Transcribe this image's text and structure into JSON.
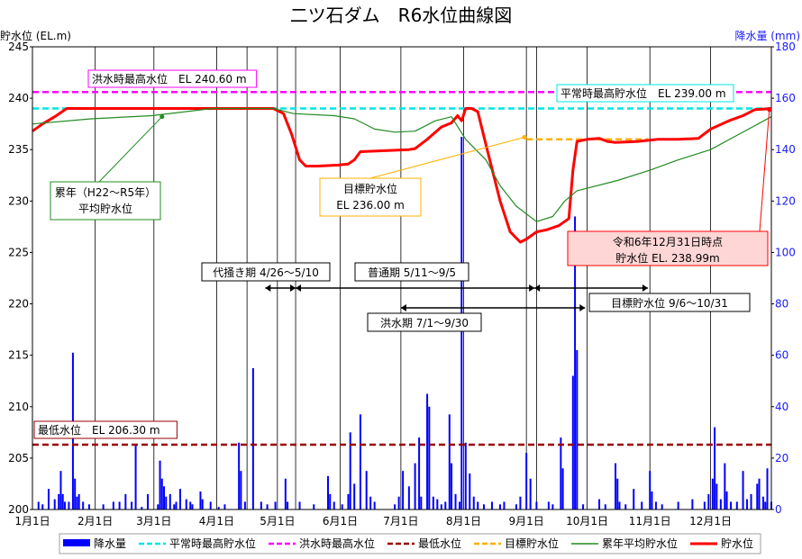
{
  "chart_data": {
    "type": "line",
    "title": "二ツ石ダム　R6水位曲線図",
    "ylabel_left": "貯水位 (EL.m)",
    "ylabel_right": "降水量 (mm)",
    "y_left_range": [
      200,
      245
    ],
    "y_left_ticks": [
      200,
      205,
      210,
      215,
      220,
      225,
      230,
      235,
      240,
      245
    ],
    "y_right_range": [
      0,
      180
    ],
    "y_right_ticks": [
      0,
      20,
      40,
      60,
      80,
      100,
      120,
      140,
      160,
      180
    ],
    "x_range_days": [
      1,
      366
    ],
    "x_ticks": [
      {
        "label": "1月1日",
        "day": 1
      },
      {
        "label": "2月1日",
        "day": 32
      },
      {
        "label": "3月1日",
        "day": 61
      },
      {
        "label": "4月1日",
        "day": 92
      },
      {
        "label": "5月1日",
        "day": 122
      },
      {
        "label": "6月1日",
        "day": 153
      },
      {
        "label": "7月1日",
        "day": 183
      },
      {
        "label": "8月1日",
        "day": 214
      },
      {
        "label": "9月1日",
        "day": 245
      },
      {
        "label": "10月1日",
        "day": 275
      },
      {
        "label": "11月1日",
        "day": 306
      },
      {
        "label": "12月1日",
        "day": 336
      }
    ],
    "grid_vertical": [
      32,
      61,
      92,
      107,
      122,
      131,
      153,
      183,
      214,
      245,
      250,
      275,
      306,
      336
    ],
    "reference_lines": [
      {
        "name": "平常時最高貯水位",
        "value": 239.0,
        "color": "#00e5e5",
        "label": "平常時最高貯水位　EL 239.00 m"
      },
      {
        "name": "洪水時最高水位",
        "value": 240.6,
        "color": "#ff00ff",
        "label": "洪水時最高水位　EL 240.60 m"
      },
      {
        "name": "最低水位",
        "value": 206.3,
        "color": "#990000",
        "label": "最低水位　EL 206.30 m"
      },
      {
        "name": "目標貯水位",
        "value": 236.0,
        "color": "#ffb000",
        "day_range": [
          245,
          305
        ]
      }
    ],
    "series": [
      {
        "name": "貯水位",
        "color": "#ff0000",
        "points": [
          [
            1,
            236.8
          ],
          [
            6,
            237.5
          ],
          [
            12,
            238.2
          ],
          [
            18,
            239.0
          ],
          [
            30,
            239.0
          ],
          [
            60,
            239.0
          ],
          [
            90,
            239.0
          ],
          [
            120,
            239.0
          ],
          [
            125,
            238.5
          ],
          [
            129,
            236.5
          ],
          [
            133,
            234.0
          ],
          [
            136,
            233.4
          ],
          [
            142,
            233.4
          ],
          [
            152,
            233.5
          ],
          [
            157,
            233.6
          ],
          [
            160,
            234.0
          ],
          [
            163,
            234.8
          ],
          [
            175,
            234.9
          ],
          [
            187,
            235.0
          ],
          [
            190,
            235.1
          ],
          [
            196,
            236.0
          ],
          [
            203,
            237.2
          ],
          [
            208,
            237.6
          ],
          [
            211,
            238.3
          ],
          [
            213,
            237.8
          ],
          [
            215,
            239.0
          ],
          [
            218,
            239.0
          ],
          [
            221,
            238.7
          ],
          [
            225,
            235.5
          ],
          [
            232,
            230.0
          ],
          [
            237,
            227.0
          ],
          [
            242,
            226.0
          ],
          [
            245,
            226.3
          ],
          [
            250,
            227.0
          ],
          [
            255,
            227.2
          ],
          [
            261,
            227.6
          ],
          [
            266,
            228.3
          ],
          [
            268,
            233.0
          ],
          [
            270,
            235.8
          ],
          [
            275,
            236.0
          ],
          [
            281,
            236.1
          ],
          [
            285,
            235.8
          ],
          [
            289,
            235.7
          ],
          [
            300,
            235.8
          ],
          [
            310,
            236.0
          ],
          [
            320,
            236.0
          ],
          [
            330,
            236.1
          ],
          [
            336,
            237.0
          ],
          [
            345,
            237.8
          ],
          [
            352,
            238.3
          ],
          [
            358,
            238.9
          ],
          [
            366,
            238.99
          ]
        ]
      },
      {
        "name": "累年平均貯水位",
        "color": "#228b22",
        "points": [
          [
            1,
            237.5
          ],
          [
            30,
            238.0
          ],
          [
            60,
            238.3
          ],
          [
            90,
            239.0
          ],
          [
            120,
            239.0
          ],
          [
            130,
            238.5
          ],
          [
            150,
            238.3
          ],
          [
            160,
            238.0
          ],
          [
            170,
            237.0
          ],
          [
            180,
            236.7
          ],
          [
            190,
            236.8
          ],
          [
            200,
            237.8
          ],
          [
            208,
            238.2
          ],
          [
            215,
            236.0
          ],
          [
            225,
            234.0
          ],
          [
            232,
            231.5
          ],
          [
            240,
            229.5
          ],
          [
            250,
            228.0
          ],
          [
            258,
            228.5
          ],
          [
            264,
            230.0
          ],
          [
            270,
            231.0
          ],
          [
            290,
            232.0
          ],
          [
            306,
            233.0
          ],
          [
            320,
            234.0
          ],
          [
            336,
            235.0
          ],
          [
            350,
            236.5
          ],
          [
            366,
            238.2
          ]
        ]
      },
      {
        "name": "降水量",
        "type": "bar",
        "color": "#0000ff",
        "bars": [
          [
            4,
            3
          ],
          [
            6,
            2
          ],
          [
            9,
            8
          ],
          [
            12,
            4
          ],
          [
            14,
            6
          ],
          [
            15,
            15
          ],
          [
            16,
            6
          ],
          [
            17,
            3
          ],
          [
            19,
            3
          ],
          [
            21,
            61
          ],
          [
            22,
            12
          ],
          [
            23,
            5
          ],
          [
            24,
            6
          ],
          [
            26,
            3
          ],
          [
            29,
            2
          ],
          [
            36,
            2
          ],
          [
            41,
            3
          ],
          [
            44,
            3
          ],
          [
            47,
            6
          ],
          [
            50,
            3
          ],
          [
            52,
            25
          ],
          [
            55,
            1
          ],
          [
            58,
            6
          ],
          [
            63,
            2
          ],
          [
            64,
            19
          ],
          [
            65,
            12
          ],
          [
            66,
            9
          ],
          [
            67,
            5
          ],
          [
            69,
            6
          ],
          [
            71,
            2
          ],
          [
            72,
            3
          ],
          [
            74,
            8
          ],
          [
            77,
            4
          ],
          [
            79,
            3
          ],
          [
            80,
            2
          ],
          [
            84,
            7
          ],
          [
            85,
            4
          ],
          [
            89,
            3
          ],
          [
            93,
            1
          ],
          [
            96,
            2
          ],
          [
            103,
            26
          ],
          [
            104,
            15
          ],
          [
            106,
            3
          ],
          [
            110,
            55
          ],
          [
            114,
            3
          ],
          [
            117,
            2
          ],
          [
            121,
            3
          ],
          [
            126,
            12
          ],
          [
            127,
            3
          ],
          [
            133,
            3
          ],
          [
            140,
            2
          ],
          [
            147,
            13
          ],
          [
            148,
            6
          ],
          [
            150,
            3
          ],
          [
            154,
            2
          ],
          [
            157,
            6
          ],
          [
            158,
            30
          ],
          [
            160,
            10
          ],
          [
            163,
            37
          ],
          [
            166,
            15
          ],
          [
            168,
            5
          ],
          [
            170,
            3
          ],
          [
            180,
            2
          ],
          [
            182,
            5
          ],
          [
            184,
            15
          ],
          [
            187,
            9
          ],
          [
            190,
            18
          ],
          [
            192,
            28
          ],
          [
            193,
            5
          ],
          [
            196,
            45
          ],
          [
            197,
            40
          ],
          [
            199,
            5
          ],
          [
            201,
            4
          ],
          [
            203,
            2
          ],
          [
            205,
            3
          ],
          [
            207,
            37
          ],
          [
            208,
            18
          ],
          [
            210,
            6
          ],
          [
            212,
            3
          ],
          [
            213,
            145
          ],
          [
            215,
            26
          ],
          [
            217,
            14
          ],
          [
            219,
            5
          ],
          [
            221,
            3
          ],
          [
            224,
            2
          ],
          [
            228,
            3
          ],
          [
            232,
            2
          ],
          [
            234,
            3
          ],
          [
            240,
            2
          ],
          [
            242,
            5
          ],
          [
            245,
            22
          ],
          [
            247,
            12
          ],
          [
            250,
            3
          ],
          [
            256,
            3
          ],
          [
            258,
            2
          ],
          [
            262,
            28
          ],
          [
            263,
            16
          ],
          [
            268,
            52
          ],
          [
            269,
            114
          ],
          [
            270,
            62
          ],
          [
            273,
            2
          ],
          [
            281,
            4
          ],
          [
            284,
            2
          ],
          [
            289,
            18
          ],
          [
            290,
            12
          ],
          [
            291,
            3
          ],
          [
            294,
            2
          ],
          [
            298,
            8
          ],
          [
            302,
            3
          ],
          [
            306,
            15
          ],
          [
            307,
            7
          ],
          [
            309,
            3
          ],
          [
            312,
            2
          ],
          [
            320,
            3
          ],
          [
            327,
            4
          ],
          [
            333,
            3
          ],
          [
            335,
            6
          ],
          [
            337,
            12
          ],
          [
            338,
            32
          ],
          [
            339,
            10
          ],
          [
            341,
            4
          ],
          [
            343,
            18
          ],
          [
            344,
            7
          ],
          [
            346,
            3
          ],
          [
            349,
            3
          ],
          [
            352,
            15
          ],
          [
            354,
            4
          ],
          [
            356,
            6
          ],
          [
            359,
            10
          ],
          [
            360,
            12
          ],
          [
            362,
            5
          ],
          [
            363,
            3
          ],
          [
            364,
            16
          ],
          [
            366,
            3
          ]
        ]
      }
    ],
    "annotations": [
      {
        "id": "shikigata",
        "text": "累年（H22～R5年）",
        "text2": "平均貯水位",
        "color": "#228b22"
      },
      {
        "id": "target",
        "text": "目標貯水位",
        "text2": "EL 236.00 m",
        "color": "#ffb000"
      },
      {
        "id": "current",
        "text": "令和6年12月31日時点",
        "text2": "貯水位 EL. 238.99m",
        "color": "#ff0000"
      },
      {
        "id": "period1",
        "text": "代掻き期 4/26～5/10",
        "from_day": 116,
        "to_day": 131
      },
      {
        "id": "period2",
        "text": "普通期 5/11～9/5",
        "from_day": 131,
        "to_day": 249
      },
      {
        "id": "period3",
        "text": "目標貯水位 9/6～10/31",
        "from_day": 249,
        "to_day": 305
      },
      {
        "id": "period4",
        "text": "洪水期 7/1～9/30",
        "from_day": 183,
        "to_day": 274
      }
    ],
    "legend": {
      "placement": "bottom",
      "items": [
        {
          "label": "降水量",
          "color": "#0000ff",
          "style": "bar"
        },
        {
          "label": "平常時最高貯水位",
          "color": "#00e5e5",
          "style": "dash"
        },
        {
          "label": "洪水時最高水位",
          "color": "#ff00ff",
          "style": "dash"
        },
        {
          "label": "最低水位",
          "color": "#990000",
          "style": "dash"
        },
        {
          "label": "目標貯水位",
          "color": "#ffb000",
          "style": "dash"
        },
        {
          "label": "累年平均貯水位",
          "color": "#228b22",
          "style": "line"
        },
        {
          "label": "貯水位",
          "color": "#ff0000",
          "style": "thick"
        }
      ]
    }
  }
}
